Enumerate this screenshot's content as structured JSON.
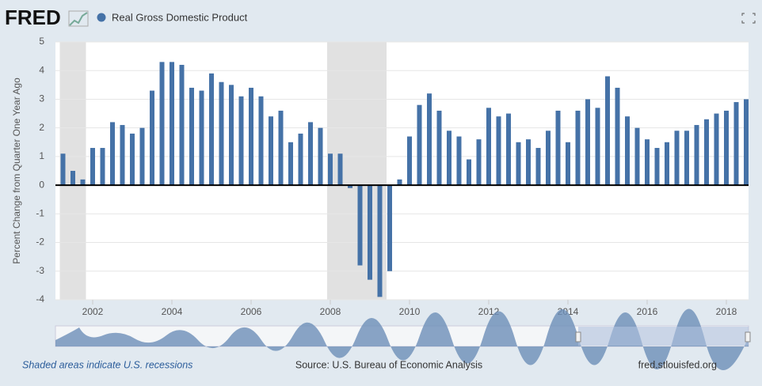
{
  "chart_data": {
    "type": "bar",
    "brand": "FRED",
    "ylabel": "Percent Change from Quarter One Year Ago",
    "note": "Shaded areas indicate U.S. recessions",
    "source": "Source: U.S. Bureau of Economic Analysis",
    "site": "fred.stlouisfed.org",
    "x": [
      2001.25,
      2001.5,
      2001.75,
      2002,
      2002.25,
      2002.5,
      2002.75,
      2003,
      2003.25,
      2003.5,
      2003.75,
      2004,
      2004.25,
      2004.5,
      2004.75,
      2005,
      2005.25,
      2005.5,
      2005.75,
      2006,
      2006.25,
      2006.5,
      2006.75,
      2007,
      2007.25,
      2007.5,
      2007.75,
      2008,
      2008.25,
      2008.5,
      2008.75,
      2009,
      2009.25,
      2009.5,
      2009.75,
      2010,
      2010.25,
      2010.5,
      2010.75,
      2011,
      2011.25,
      2011.5,
      2011.75,
      2012,
      2012.25,
      2012.5,
      2012.75,
      2013,
      2013.25,
      2013.5,
      2013.75,
      2014,
      2014.25,
      2014.5,
      2014.75,
      2015,
      2015.25,
      2015.5,
      2015.75,
      2016,
      2016.25,
      2016.5,
      2016.75,
      2017,
      2017.25,
      2017.5,
      2017.75,
      2018,
      2018.25,
      2018.5
    ],
    "series": [
      {
        "name": "Real Gross Domestic Product",
        "color": "#4572a7",
        "values": [
          1.1,
          0.5,
          0.2,
          1.3,
          1.3,
          2.2,
          2.1,
          1.8,
          2.0,
          3.3,
          4.3,
          4.3,
          4.2,
          3.4,
          3.3,
          3.9,
          3.6,
          3.5,
          3.1,
          3.4,
          3.1,
          2.4,
          2.6,
          1.5,
          1.8,
          2.2,
          2.0,
          1.1,
          1.1,
          -0.1,
          -2.8,
          -3.3,
          -3.9,
          -3.0,
          0.2,
          1.7,
          2.8,
          3.2,
          2.6,
          1.9,
          1.7,
          0.9,
          1.6,
          2.7,
          2.4,
          2.5,
          1.5,
          1.6,
          1.3,
          1.9,
          2.6,
          1.5,
          2.6,
          3.0,
          2.7,
          3.8,
          3.4,
          2.4,
          2.0,
          1.6,
          1.3,
          1.5,
          1.9,
          1.9,
          2.1,
          2.3,
          2.5,
          2.6,
          2.9,
          3.0
        ]
      }
    ],
    "recessions": [
      [
        2001.17,
        2001.83
      ],
      [
        2007.92,
        2009.42
      ]
    ],
    "xlim": [
      2001.06,
      2018.56
    ],
    "xticks": [
      2002,
      2004,
      2006,
      2008,
      2010,
      2012,
      2014,
      2016,
      2018
    ],
    "ylim": [
      -4,
      5
    ],
    "yticks": [
      -4,
      -3,
      -2,
      -1,
      0,
      1,
      2,
      3,
      4,
      5
    ],
    "grid": true
  }
}
